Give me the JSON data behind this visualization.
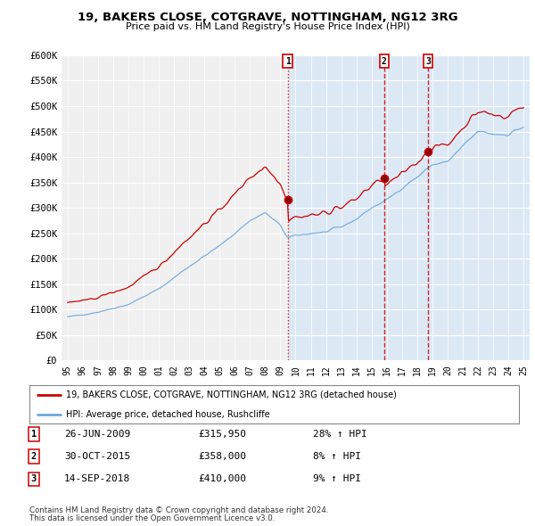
{
  "title": "19, BAKERS CLOSE, COTGRAVE, NOTTINGHAM, NG12 3RG",
  "subtitle": "Price paid vs. HM Land Registry's House Price Index (HPI)",
  "background_color": "#ffffff",
  "plot_bg_color_left": "#f0f0f0",
  "plot_bg_color_right": "#dce9f5",
  "ylim": [
    0,
    600000
  ],
  "yticks": [
    0,
    50000,
    100000,
    150000,
    200000,
    250000,
    300000,
    350000,
    400000,
    450000,
    500000,
    550000,
    600000
  ],
  "ytick_labels": [
    "£0",
    "£50K",
    "£100K",
    "£150K",
    "£200K",
    "£250K",
    "£300K",
    "£350K",
    "£400K",
    "£450K",
    "£500K",
    "£550K",
    "£600K"
  ],
  "sale_dates": [
    2009.48,
    2015.83,
    2018.71
  ],
  "sale_prices": [
    315950,
    358000,
    410000
  ],
  "sale_labels": [
    "1",
    "2",
    "3"
  ],
  "legend_line1": "19, BAKERS CLOSE, COTGRAVE, NOTTINGHAM, NG12 3RG (detached house)",
  "legend_line2": "HPI: Average price, detached house, Rushcliffe",
  "table_entries": [
    {
      "num": "1",
      "date": "26-JUN-2009",
      "price": "£315,950",
      "hpi": "28% ↑ HPI"
    },
    {
      "num": "2",
      "date": "30-OCT-2015",
      "price": "£358,000",
      "hpi": "8% ↑ HPI"
    },
    {
      "num": "3",
      "date": "14-SEP-2018",
      "price": "£410,000",
      "hpi": "9% ↑ HPI"
    }
  ],
  "footer1": "Contains HM Land Registry data © Crown copyright and database right 2024.",
  "footer2": "This data is licensed under the Open Government Licence v3.0.",
  "red_line_color": "#cc0000",
  "blue_line_color": "#6fa8dc",
  "vline1_style": "dotted",
  "vline23_style": "dashed",
  "vline_color": "#cc0000",
  "xstart": 1995,
  "xend": 2025
}
